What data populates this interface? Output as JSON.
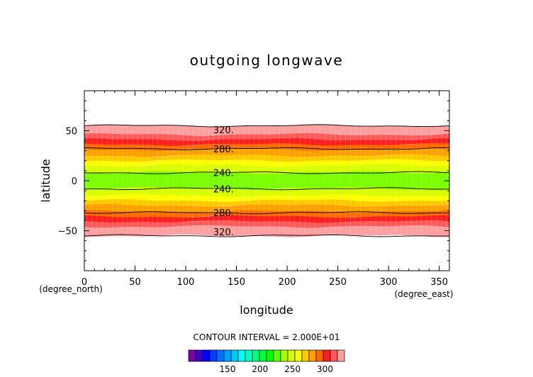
{
  "chart_data": {
    "type": "heatmap",
    "title": "outgoing longwave",
    "xlabel": "longitude",
    "ylabel": "latitude",
    "x_unit": "(degree_east)",
    "y_unit": "(degree_north)",
    "xlim": [
      0,
      360
    ],
    "ylim": [
      -90,
      90
    ],
    "x_ticks": [
      0,
      50,
      100,
      150,
      200,
      250,
      300,
      350
    ],
    "y_ticks": [
      -50,
      0,
      50
    ],
    "x_tick_labels": [
      "0",
      "50",
      "100",
      "150",
      "200",
      "250",
      "300",
      "350"
    ],
    "y_tick_labels": [
      "−50",
      "0",
      "50"
    ],
    "contour_interval_text": "CONTOUR INTERVAL = 2.000E+01",
    "contour_levels": [
      240,
      280,
      320
    ],
    "contour_labels": [
      {
        "text": "320.",
        "lon": 125,
        "lat": 51
      },
      {
        "text": "280.",
        "lon": 125,
        "lat": 32
      },
      {
        "text": "240.",
        "lon": 125,
        "lat": 8
      },
      {
        "text": "240.",
        "lon": 125,
        "lat": -8
      },
      {
        "text": "280.",
        "lon": 125,
        "lat": -32
      },
      {
        "text": "320.",
        "lon": 125,
        "lat": -51
      }
    ],
    "bands": [
      {
        "lat_min": 46,
        "lat_max": 55,
        "color": "#ff9f9f"
      },
      {
        "lat_min": 41,
        "lat_max": 46,
        "color": "#ff5a5a"
      },
      {
        "lat_min": 36,
        "lat_max": 41,
        "color": "#ff1e1e"
      },
      {
        "lat_min": 31,
        "lat_max": 36,
        "color": "#ff6a00"
      },
      {
        "lat_min": 25,
        "lat_max": 31,
        "color": "#ffa000"
      },
      {
        "lat_min": 20,
        "lat_max": 25,
        "color": "#ffc800"
      },
      {
        "lat_min": 15,
        "lat_max": 20,
        "color": "#ffff00"
      },
      {
        "lat_min": 8,
        "lat_max": 15,
        "color": "#d8ff00"
      },
      {
        "lat_min": -8,
        "lat_max": 8,
        "color": "#7cff00"
      },
      {
        "lat_min": -15,
        "lat_max": -8,
        "color": "#d8ff00"
      },
      {
        "lat_min": -20,
        "lat_max": -15,
        "color": "#ffff00"
      },
      {
        "lat_min": -25,
        "lat_max": -20,
        "color": "#ffc800"
      },
      {
        "lat_min": -31,
        "lat_max": -25,
        "color": "#ffa000"
      },
      {
        "lat_min": -36,
        "lat_max": -31,
        "color": "#ff6a00"
      },
      {
        "lat_min": -41,
        "lat_max": -36,
        "color": "#ff1e1e"
      },
      {
        "lat_min": -46,
        "lat_max": -41,
        "color": "#ff5a5a"
      },
      {
        "lat_min": -55,
        "lat_max": -46,
        "color": "#ff9f9f"
      }
    ],
    "colorbar": {
      "tick_labels": [
        "150",
        "200",
        "250",
        "300"
      ],
      "tick_values": [
        150,
        200,
        250,
        300
      ],
      "range": [
        90,
        330
      ],
      "colors": [
        "#7a00a0",
        "#3c00c8",
        "#0000ff",
        "#0040ff",
        "#0070ff",
        "#00a0ff",
        "#00c8ff",
        "#00ffff",
        "#00ffc0",
        "#00ff80",
        "#00ff40",
        "#00ff00",
        "#60ff00",
        "#a8ff00",
        "#d8ff00",
        "#ffff00",
        "#ffc800",
        "#ffa000",
        "#ff6a00",
        "#ff1e1e",
        "#ff5a5a",
        "#ff9f9f"
      ]
    }
  }
}
